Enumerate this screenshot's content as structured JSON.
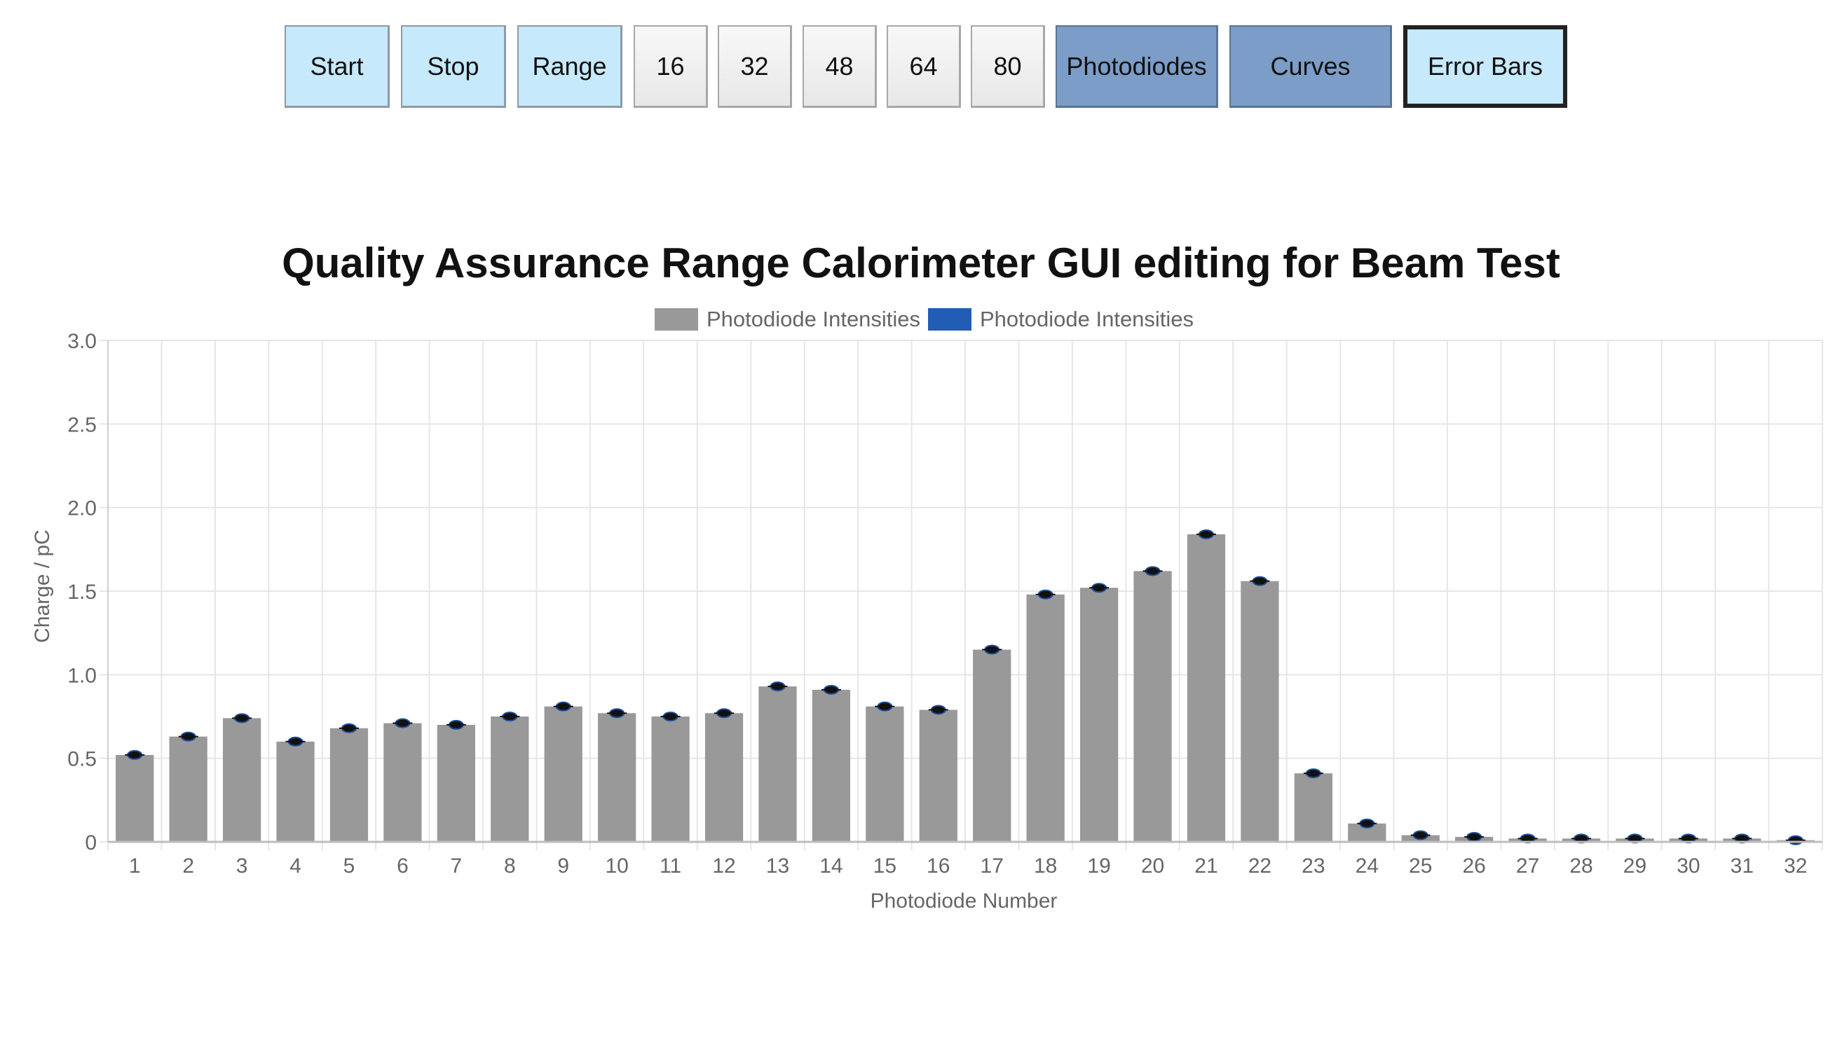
{
  "toolbar": {
    "buttons": [
      {
        "label": "Start",
        "style": "light"
      },
      {
        "label": "Stop",
        "style": "light"
      },
      {
        "label": "Range",
        "style": "light"
      },
      {
        "label": "16",
        "style": "grey"
      },
      {
        "label": "32",
        "style": "grey"
      },
      {
        "label": "48",
        "style": "grey"
      },
      {
        "label": "64",
        "style": "grey"
      },
      {
        "label": "80",
        "style": "grey"
      },
      {
        "label": "Photodiodes",
        "style": "steel"
      },
      {
        "label": "Curves",
        "style": "steel"
      },
      {
        "label": "Error Bars",
        "style": "light",
        "selected": true
      }
    ]
  },
  "colors": {
    "bar": "#999999",
    "legend_second": "#215db4",
    "error_marker": "#111111",
    "error_marker_edge": "#1f4f9a",
    "grid": "#e6e6e6"
  },
  "chart_data": {
    "type": "bar",
    "title": "Quality Assurance Range Calorimeter GUI editing for Beam Test",
    "xlabel": "Photodiode Number",
    "ylabel": "Charge / pC",
    "ylim": [
      0,
      3.0
    ],
    "yticks": [
      "0",
      "0.5",
      "1.0",
      "1.5",
      "2.0",
      "2.5",
      "3.0"
    ],
    "grid": true,
    "legend_placement": "top-center",
    "legend": [
      "Photodiode Intensities",
      "Photodiode Intensities"
    ],
    "categories": [
      "1",
      "2",
      "3",
      "4",
      "5",
      "6",
      "7",
      "8",
      "9",
      "10",
      "11",
      "12",
      "13",
      "14",
      "15",
      "16",
      "17",
      "18",
      "19",
      "20",
      "21",
      "22",
      "23",
      "24",
      "25",
      "26",
      "27",
      "28",
      "29",
      "30",
      "31",
      "32"
    ],
    "series": [
      {
        "name": "Photodiode Intensities",
        "values": [
          0.52,
          0.63,
          0.74,
          0.6,
          0.68,
          0.71,
          0.7,
          0.75,
          0.81,
          0.77,
          0.75,
          0.77,
          0.93,
          0.91,
          0.81,
          0.79,
          1.15,
          1.48,
          1.52,
          1.62,
          1.84,
          1.56,
          0.41,
          0.11,
          0.04,
          0.03,
          0.02,
          0.02,
          0.02,
          0.02,
          0.02,
          0.01
        ]
      }
    ]
  }
}
